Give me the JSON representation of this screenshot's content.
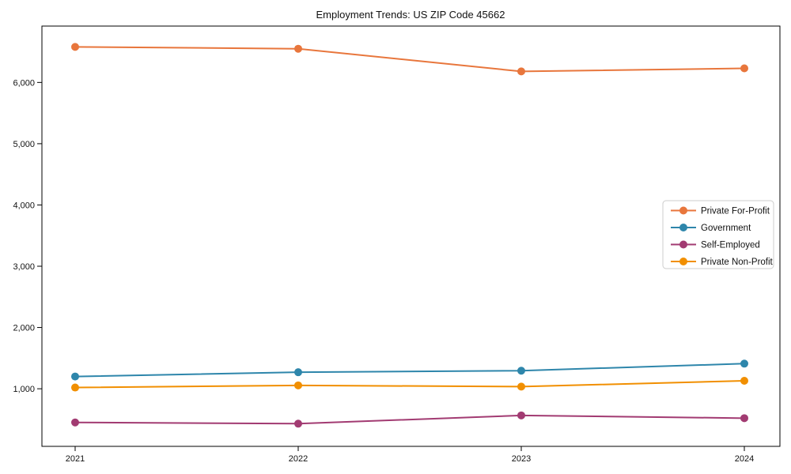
{
  "chart_data": {
    "type": "line",
    "title": "Employment Trends: US ZIP Code 45662",
    "x": [
      "2021",
      "2022",
      "2023",
      "2024"
    ],
    "xlabel": "",
    "ylabel": "",
    "ylim": [
      60,
      6920
    ],
    "yticks": [
      1000,
      2000,
      3000,
      4000,
      5000,
      6000
    ],
    "ytick_labels": [
      "1,000",
      "2,000",
      "3,000",
      "4,000",
      "5,000",
      "6,000"
    ],
    "grid": false,
    "legend_position": "center-right",
    "axis_color": "#000000",
    "background_color": "#ffffff",
    "series": [
      {
        "name": "Private For-Profit",
        "color": "#e8763c",
        "values": [
          6580,
          6550,
          6180,
          6230
        ]
      },
      {
        "name": "Government",
        "color": "#2e86ab",
        "values": [
          1200,
          1270,
          1295,
          1410
        ]
      },
      {
        "name": "Self-Employed",
        "color": "#a23b72",
        "values": [
          450,
          430,
          565,
          520
        ]
      },
      {
        "name": "Private Non-Profit",
        "color": "#f18f01",
        "values": [
          1020,
          1055,
          1035,
          1130
        ]
      }
    ]
  }
}
